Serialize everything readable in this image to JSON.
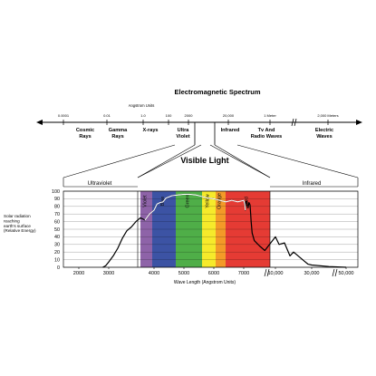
{
  "chart_data": [
    {
      "type": "diagram",
      "title": "Electromagnetic Spectrum",
      "unit_label": "Angstrom Units",
      "scale_ticks": [
        "0.0001",
        "0.01",
        "1.0",
        "100",
        "2000",
        "20,000",
        "1 Meter",
        "2,000 Meters"
      ],
      "bands": [
        {
          "lines": [
            "Cosmic",
            "Rays"
          ]
        },
        {
          "lines": [
            "Gamma",
            "Rays"
          ]
        },
        {
          "lines": [
            "X-rays"
          ]
        },
        {
          "lines": [
            "Ultra",
            "Violet"
          ]
        },
        {
          "lines": [
            "Infrared"
          ]
        },
        {
          "lines": [
            "Tv And",
            "Radio Waves"
          ]
        },
        {
          "lines": [
            "Electric",
            "Waves"
          ]
        }
      ]
    },
    {
      "type": "area",
      "title": "Visible Light",
      "regions": [
        "Ultraviolet",
        "Infrared"
      ],
      "colors": [
        {
          "name": "Violet",
          "color": "#8e63a8"
        },
        {
          "name": "Blue",
          "color": "#3c53a4"
        },
        {
          "name": "Green",
          "color": "#4fae48"
        },
        {
          "name": "Yellow",
          "color": "#f6ea2b"
        },
        {
          "name": "Orange",
          "color": "#f39a28"
        },
        {
          "name": "Red",
          "color": "#e53b34"
        }
      ],
      "ylabel": "Solar radiation reaching earth's surface (Relative Energy)",
      "xlabel": "Wave Length (Angstrom Units)",
      "yticks": [
        "100",
        "90",
        "80",
        "70",
        "60",
        "50",
        "40",
        "30",
        "20",
        "10",
        "0"
      ],
      "xticks": [
        "2000",
        "3000",
        "4000",
        "5000",
        "6000",
        "7000",
        "10,000",
        "30,000",
        "50,000"
      ],
      "ylim": [
        0,
        100
      ],
      "xlim": [
        2000,
        50000
      ],
      "curve": {
        "x": [
          2800,
          2900,
          3000,
          3100,
          3200,
          3300,
          3400,
          3500,
          3600,
          3700,
          3800,
          3900,
          4000,
          4100,
          4200,
          4300,
          4400,
          4600,
          4800,
          5000,
          5200,
          5400,
          5600,
          5800,
          6000,
          6200,
          6400,
          6600,
          6800,
          7000,
          7100,
          7150,
          7200,
          7300,
          7400,
          7500,
          7600,
          7700,
          7800,
          8000,
          8500,
          9000,
          10000,
          12000,
          15000,
          18000,
          20000,
          24000,
          26000,
          28000,
          30000,
          40000,
          50000
        ],
        "y": [
          0,
          2,
          7,
          15,
          25,
          38,
          48,
          53,
          60,
          65,
          62,
          70,
          75,
          83,
          85,
          86,
          91,
          94,
          95,
          96,
          96,
          95,
          93,
          91,
          90,
          88,
          86,
          88,
          86,
          88,
          83,
          75,
          86,
          87,
          78,
          85,
          82,
          60,
          45,
          35,
          28,
          22,
          40,
          30,
          32,
          15,
          20,
          12,
          8,
          4,
          3,
          1,
          0
        ]
      }
    }
  ]
}
